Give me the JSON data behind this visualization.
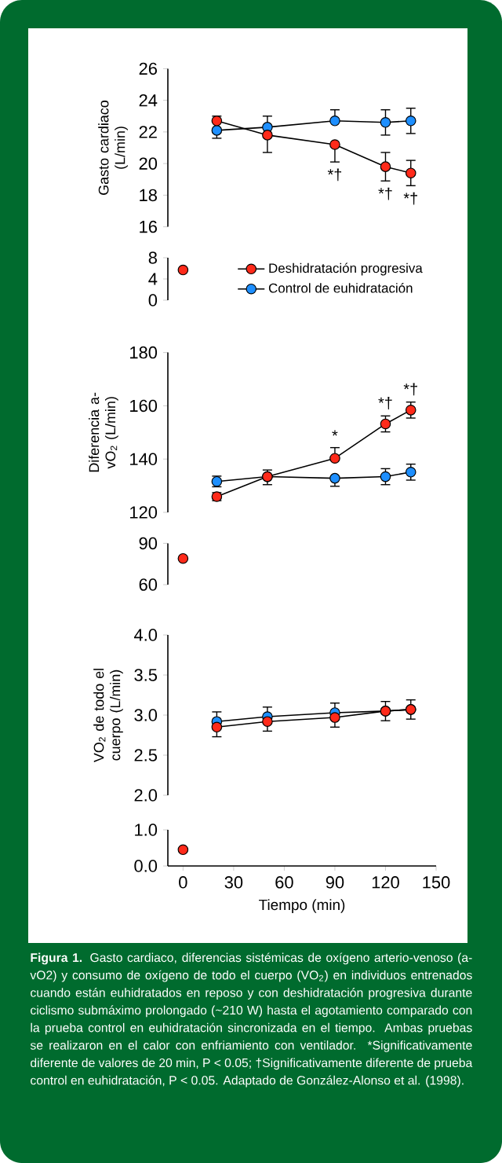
{
  "chart_data": [
    {
      "type": "line",
      "ylabel": "Gasto cardiaco (L/min)",
      "x": [
        20,
        50,
        90,
        120,
        135
      ],
      "xlim": [
        -9,
        150
      ],
      "ylim": [
        16,
        26
      ],
      "yticks": [
        16,
        18,
        20,
        22,
        24,
        26
      ],
      "tick_labels": "y",
      "marker": "circle",
      "series": [
        {
          "color": "#1e8fff",
          "values": [
            22.1,
            22.3,
            22.7,
            22.6,
            22.7
          ],
          "errors": [
            [
              21.6,
              22.1
            ],
            [
              22.3,
              23.0
            ],
            [
              22.7,
              23.4
            ],
            0.8,
            0.8
          ]
        },
        {
          "color": "#ff2a1a",
          "values": [
            22.7,
            21.8,
            21.2,
            19.8,
            19.4
          ],
          "errors": [
            [
              22.7,
              23.0
            ],
            [
              20.7,
              21.8
            ],
            [
              20.1,
              21.2
            ],
            0.9,
            0.8
          ]
        }
      ],
      "annotations": [
        {
          "text": "*†",
          "x": 90,
          "y": 21.2
        },
        {
          "text": "*†",
          "x": 120,
          "y": 19.8
        },
        {
          "text": "*†",
          "x": 135,
          "y": 19.4
        }
      ]
    },
    {
      "type": "line",
      "x": [
        0
      ],
      "xlim": [
        -9,
        150
      ],
      "ylim": [
        0,
        8
      ],
      "yticks": [
        0,
        4,
        8
      ],
      "tick_labels": "y",
      "marker": "circle",
      "legend": "right",
      "series": [
        {
          "name": "Deshidratación progresiva",
          "color": "#ff2a1a",
          "values": [
            5.7
          ]
        },
        {
          "name": "Control de euhidratación",
          "color": "#1e8fff",
          "values": [
            null
          ]
        }
      ]
    },
    {
      "type": "line",
      "ylabel": "Diferencia a-vO$_{2}$ (L/min)",
      "x": [
        20,
        50,
        90,
        120,
        135
      ],
      "xlim": [
        -9,
        150
      ],
      "ylim": [
        120,
        180
      ],
      "yticks": [
        120,
        140,
        160,
        180
      ],
      "tick_labels": "y",
      "marker": "circle",
      "series": [
        {
          "color": "#1e8fff",
          "values": [
            131.6,
            133.4,
            132.8,
            133.4,
            135.1
          ],
          "errors": [
            2,
            [
              130.4,
              133.4
            ],
            [
              129.8,
              132.8
            ],
            3,
            3
          ]
        },
        {
          "color": "#ff2a1a",
          "values": [
            125.9,
            133.4,
            140.3,
            153.2,
            158.4
          ],
          "errors": [
            1.5,
            [
              133.4,
              135.9
            ],
            [
              140.3,
              144.3
            ],
            3,
            3
          ]
        }
      ],
      "annotations": [
        {
          "text": "*",
          "x": 90,
          "y": 140.3
        },
        {
          "text": "*†",
          "x": 120,
          "y": 153.2
        },
        {
          "text": "*†",
          "x": 135,
          "y": 158.4
        }
      ]
    },
    {
      "type": "line",
      "x": [
        0
      ],
      "xlim": [
        -9,
        150
      ],
      "ylim": [
        60,
        90
      ],
      "yticks": [
        60,
        90
      ],
      "tick_labels": "y",
      "marker": "circle",
      "series": [
        {
          "color": "#1e8fff",
          "values": [
            null
          ]
        },
        {
          "color": "#ff2a1a",
          "values": [
            79
          ]
        }
      ]
    },
    {
      "type": "line",
      "ylabel": "VO$_{2}$ de todo el cuerpo (L/min)",
      "x": [
        20,
        50,
        90,
        120,
        135
      ],
      "xlim": [
        -9,
        150
      ],
      "ylim": [
        2.0,
        4.0
      ],
      "yticks": [
        {
          "value": 2.0,
          "label": "2.0"
        },
        {
          "value": 2.5,
          "label": "2.5"
        },
        {
          "value": 3.0,
          "label": "3.0"
        },
        {
          "value": 3.5,
          "label": "3.5"
        },
        {
          "value": 4.0,
          "label": "4.0"
        }
      ],
      "tick_labels": "y",
      "marker": "circle",
      "series": [
        {
          "color": "#1e8fff",
          "values": [
            2.92,
            2.98,
            3.03,
            3.05,
            3.07
          ],
          "errors": [
            [
              2.92,
              3.04
            ],
            [
              2.98,
              3.1
            ],
            [
              3.03,
              3.15
            ],
            [
              3.05,
              3.17
            ],
            [
              3.07,
              3.19
            ]
          ]
        },
        {
          "color": "#ff2a1a",
          "values": [
            2.85,
            2.92,
            2.97,
            3.05,
            3.07
          ],
          "errors": [
            [
              2.73,
              2.85
            ],
            [
              2.8,
              2.92
            ],
            [
              2.85,
              2.97
            ],
            [
              2.93,
              3.05
            ],
            [
              2.95,
              3.07
            ]
          ]
        }
      ]
    },
    {
      "type": "line",
      "xlabel": "Tiempo (min)",
      "x": [
        0
      ],
      "xlim": [
        -9,
        150
      ],
      "xticks": [
        0,
        30,
        60,
        90,
        120,
        150
      ],
      "ylim": [
        0.0,
        1.0
      ],
      "yticks": [
        {
          "value": 0.0,
          "label": "0.0"
        },
        {
          "value": 1.0,
          "label": "1.0"
        }
      ],
      "marker": "circle",
      "series": [
        {
          "color": "#1e8fff",
          "values": [
            null
          ]
        },
        {
          "color": "#ff2a1a",
          "values": [
            0.45
          ]
        }
      ],
      "annotations": [
        "Figura 1.",
        "Gasto cardiaco, diferencias sistémicas de oxígeno arterio-venoso (a-vO2) y consumo de oxígeno de todo el cuerpo (VO$_{2}$) en individuos entrenados cuando están euhidratados en reposo y con deshidratación progresiva durante ciclismo submáximo prolongado (~210 W) hasta el agotamiento comparado con la prueba control en euhidratación sincronizada en el tiempo. Ambas pruebas se realizaron en el calor con enfriamiento con ventilador. *Significativamente diferente de valores de 20 min, P < 0.05; †Significativamente diferente de prueba control en euhidratación, P < 0.05. Adaptado de González-Alonso et al. (1998)."
      ]
    }
  ]
}
